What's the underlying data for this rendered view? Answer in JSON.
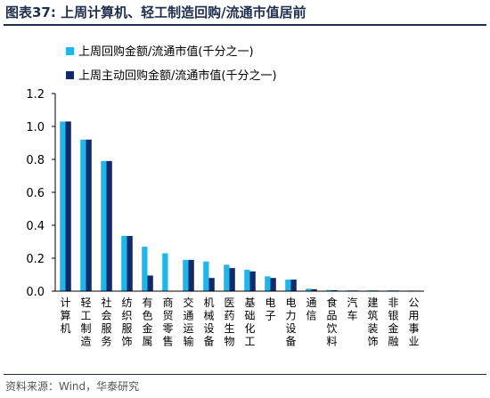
{
  "header": {
    "title": "图表37:  上周计算机、轻工制造回购/流通市值居前"
  },
  "footer": {
    "source": "资料来源：Wind，华泰研究"
  },
  "colors": {
    "series1": "#1fb7ea",
    "series2": "#0f2b6b",
    "title": "#1e2f4e"
  },
  "chart_data": {
    "type": "bar",
    "title": "",
    "xlabel": "",
    "ylabel": "",
    "ylim": [
      0,
      1.2
    ],
    "yticks": [
      "0.0",
      "0.2",
      "0.4",
      "0.6",
      "0.8",
      "1.0",
      "1.2"
    ],
    "grid": false,
    "legend_position": "top-left",
    "categories": [
      "计算机",
      "轻工制造",
      "社会服务",
      "纺织服饰",
      "有色金属",
      "商贸零售",
      "交通运输",
      "机械设备",
      "医药生物",
      "基础化工",
      "电子",
      "电力设备",
      "通信",
      "食品饮料",
      "汽车",
      "建筑装饰",
      "非银金融",
      "公用事业"
    ],
    "series": [
      {
        "name": "上周回购金额/流通市值(千分之一)",
        "values": [
          1.03,
          0.92,
          0.79,
          0.335,
          0.27,
          0.23,
          0.19,
          0.18,
          0.16,
          0.13,
          0.09,
          0.07,
          0.015,
          0.007,
          0.005,
          0.005,
          0.005,
          0.004
        ]
      },
      {
        "name": "上周主动回购金额/流通市值(千分之一)",
        "values": [
          1.03,
          0.92,
          0.79,
          0.335,
          0.095,
          0.0,
          0.19,
          0.08,
          0.14,
          0.12,
          0.08,
          0.07,
          0.012,
          0.006,
          0.004,
          0.004,
          0.004,
          0.003
        ]
      }
    ]
  }
}
